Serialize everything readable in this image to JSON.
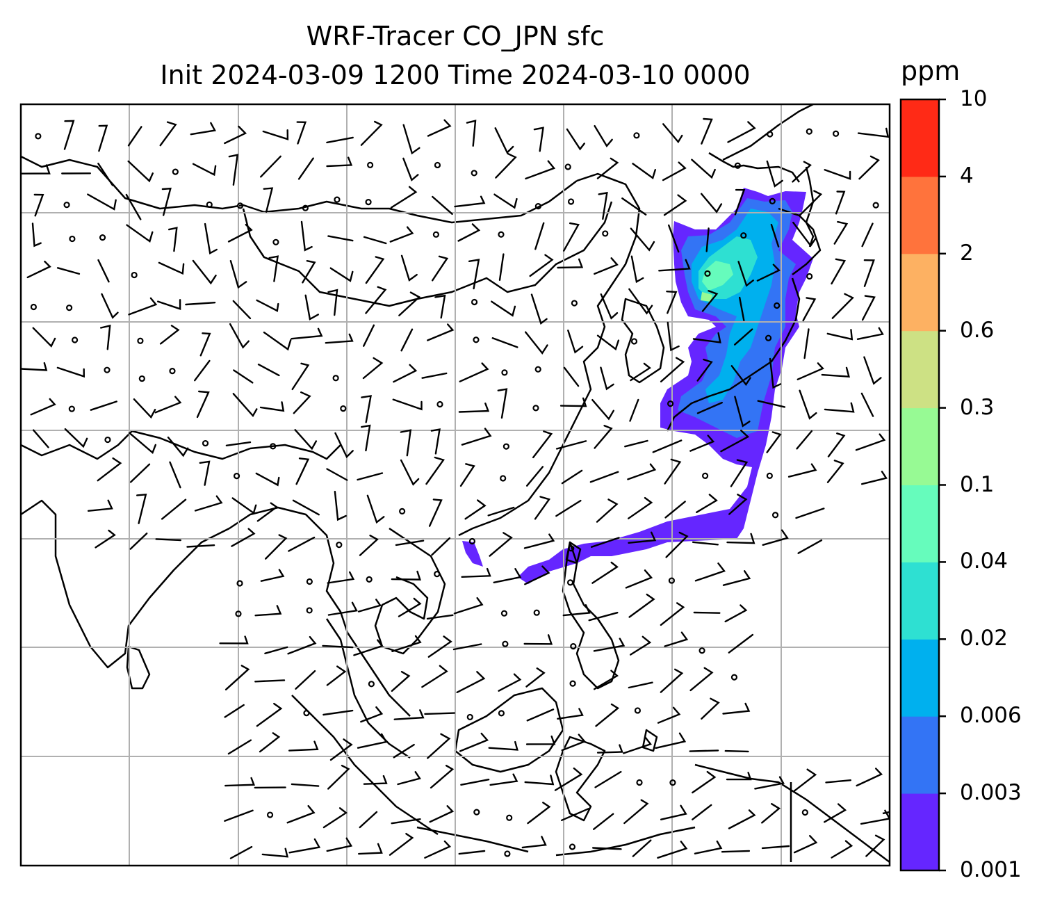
{
  "title_line1": "WRF-Tracer CO_JPN sfc",
  "title_line2": "Init 2024-03-09 1200 Time 2024-03-10 0000",
  "colorbar": {
    "unit": "ppm",
    "levels": [
      "0.001",
      "0.003",
      "0.006",
      "0.02",
      "0.04",
      "0.1",
      "0.3",
      "0.6",
      "2",
      "4",
      "10"
    ],
    "colors": [
      "#6526ff",
      "#3374f5",
      "#00b0ee",
      "#2ee0d2",
      "#66fcbc",
      "#97fa94",
      "#cde184",
      "#fdb162",
      "#ff733c",
      "#ff2a16"
    ]
  },
  "map": {
    "gridlines": true,
    "coastlines": true,
    "overlay": "wind barbs",
    "tracer_region": "plume over Japan extending south along Ryukyu arc toward Luzon Strait"
  }
}
